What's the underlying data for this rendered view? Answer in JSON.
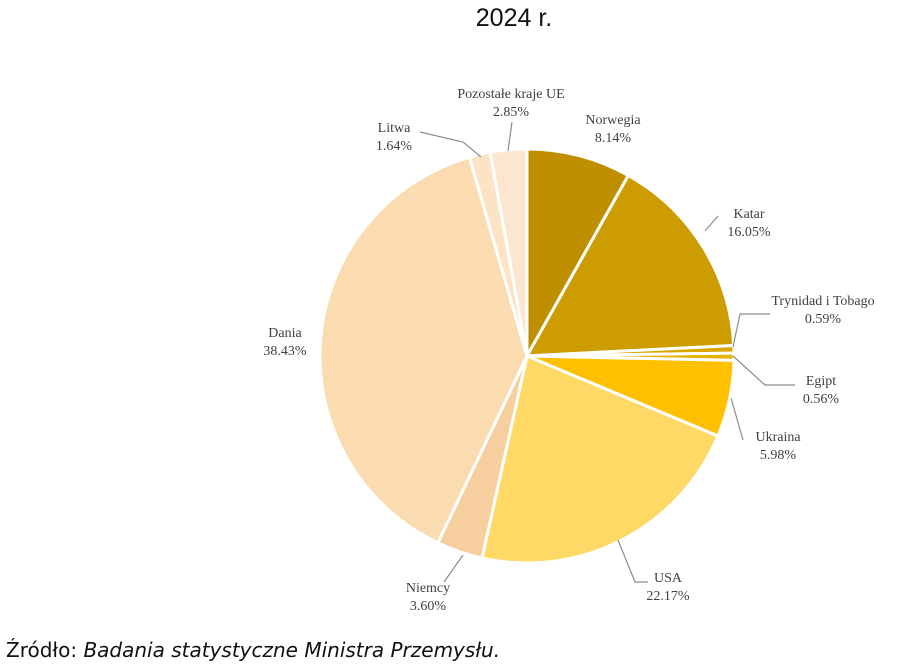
{
  "chart_data": {
    "type": "pie",
    "title": "2024 r.",
    "slices": [
      {
        "label": "Norwegia",
        "value": 8.14,
        "value_label": "8.14%",
        "color": "#bf8f00"
      },
      {
        "label": "Katar",
        "value": 16.05,
        "value_label": "16.05%",
        "color": "#cc9c00"
      },
      {
        "label": "Trynidad i Tobago",
        "value": 0.59,
        "value_label": "0.59%",
        "color": "#d9a600"
      },
      {
        "label": "Egipt",
        "value": 0.56,
        "value_label": "0.56%",
        "color": "#e6b100"
      },
      {
        "label": "Ukraina",
        "value": 5.98,
        "value_label": "5.98%",
        "color": "#ffc000"
      },
      {
        "label": "USA",
        "value": 22.17,
        "value_label": "22.17%",
        "color": "#ffd966"
      },
      {
        "label": "Niemcy",
        "value": 3.6,
        "value_label": "3.60%",
        "color": "#f7cf9e"
      },
      {
        "label": "Dania",
        "value": 38.43,
        "value_label": "38.43%",
        "color": "#fbdcb0"
      },
      {
        "label": "Litwa",
        "value": 1.64,
        "value_label": "1.64%",
        "color": "#fbe3c4"
      },
      {
        "label": "Pozostałe kraje UE",
        "value": 2.85,
        "value_label": "2.85%",
        "color": "#fde6cf"
      }
    ]
  },
  "source": {
    "prefix": "Źródło: ",
    "text": "Badania statystyczne Ministra Przemysłu."
  }
}
